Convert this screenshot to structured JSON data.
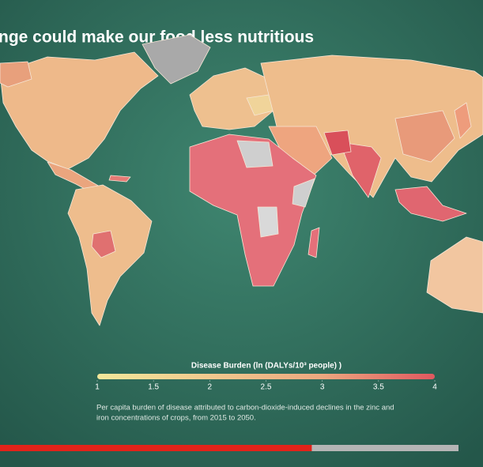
{
  "header": {
    "title": "nge could make our food less nutritious"
  },
  "legend": {
    "title": "Disease Burden (ln (DALYs/10³ people) )",
    "range": [
      1,
      4
    ],
    "ticks": [
      1,
      1.5,
      2,
      2.5,
      3,
      3.5,
      4
    ],
    "colors": [
      "#f3e79a",
      "#f1c98e",
      "#eca77f",
      "#e0585f"
    ]
  },
  "caption": {
    "lines": [
      "Per capita burden of disease attributed to carbon-dioxide-induced declines in the zinc and",
      "iron concentrations of crops, from 2015 to 2050."
    ]
  },
  "player": {
    "progress_percent": 68
  }
}
